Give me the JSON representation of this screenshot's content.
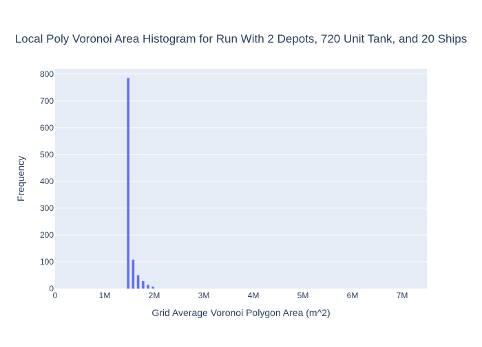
{
  "chart_data": {
    "type": "bar",
    "title": "Local Poly Voronoi Area Histogram for Run With 2 Depots, 720 Unit Tank, and 20 Ships",
    "xlabel": "Grid Average Voronoi Polygon Area (m^2)",
    "ylabel": "Frequency",
    "xlim": [
      0,
      7500000
    ],
    "ylim": [
      0,
      820
    ],
    "x_ticks": [
      {
        "value": 0,
        "label": "0"
      },
      {
        "value": 1000000,
        "label": "1M"
      },
      {
        "value": 2000000,
        "label": "2M"
      },
      {
        "value": 3000000,
        "label": "3M"
      },
      {
        "value": 4000000,
        "label": "4M"
      },
      {
        "value": 5000000,
        "label": "5M"
      },
      {
        "value": 6000000,
        "label": "6M"
      },
      {
        "value": 7000000,
        "label": "7M"
      }
    ],
    "y_ticks": [
      {
        "value": 0,
        "label": "0"
      },
      {
        "value": 100,
        "label": "100"
      },
      {
        "value": 200,
        "label": "200"
      },
      {
        "value": 300,
        "label": "300"
      },
      {
        "value": 400,
        "label": "400"
      },
      {
        "value": 500,
        "label": "500"
      },
      {
        "value": 600,
        "label": "600"
      },
      {
        "value": 700,
        "label": "700"
      },
      {
        "value": 800,
        "label": "800"
      }
    ],
    "bins": [
      {
        "x0": 1450000,
        "x1": 1500000,
        "count": 785
      },
      {
        "x0": 1550000,
        "x1": 1600000,
        "count": 108
      },
      {
        "x0": 1650000,
        "x1": 1700000,
        "count": 50
      },
      {
        "x0": 1750000,
        "x1": 1800000,
        "count": 28
      },
      {
        "x0": 1850000,
        "x1": 1900000,
        "count": 14
      },
      {
        "x0": 1950000,
        "x1": 2000000,
        "count": 7
      }
    ],
    "grid": true,
    "bar_color": "#636efa",
    "plot_background": "#e5ecf6",
    "text_color": "#2a3f5f"
  }
}
